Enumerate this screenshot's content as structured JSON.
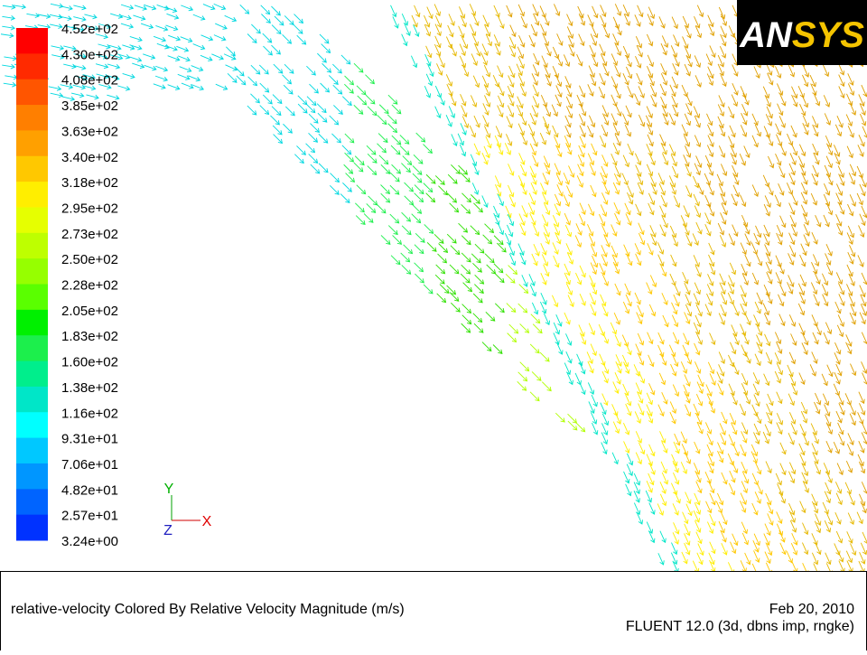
{
  "colorbar": {
    "labels": [
      "4.52e+02",
      "4.30e+02",
      "4.08e+02",
      "3.85e+02",
      "3.63e+02",
      "3.40e+02",
      "3.18e+02",
      "2.95e+02",
      "2.73e+02",
      "2.50e+02",
      "2.28e+02",
      "2.05e+02",
      "1.83e+02",
      "1.60e+02",
      "1.38e+02",
      "1.16e+02",
      "9.31e+01",
      "7.06e+01",
      "4.82e+01",
      "2.57e+01",
      "3.24e+00"
    ],
    "colors": [
      "#ff0000",
      "#ff2a00",
      "#ff5500",
      "#ff7f00",
      "#ffa000",
      "#ffc800",
      "#ffee00",
      "#e6ff00",
      "#beff00",
      "#96ff00",
      "#5aff00",
      "#00f000",
      "#1cef4c",
      "#00ee8c",
      "#00e6c8",
      "#00ffff",
      "#00c8ff",
      "#0096ff",
      "#0064ff",
      "#0032ff"
    ]
  },
  "logo": {
    "part1": "AN",
    "part2": "SYS"
  },
  "axes": {
    "y": "Y",
    "x": "X",
    "z": "Z"
  },
  "footer": {
    "description": "relative-velocity Colored By Relative Velocity Magnitude (m/s)",
    "date": "Feb 20, 2010",
    "solver": "FLUENT 12.0 (3d, dbns imp, rngke)"
  }
}
